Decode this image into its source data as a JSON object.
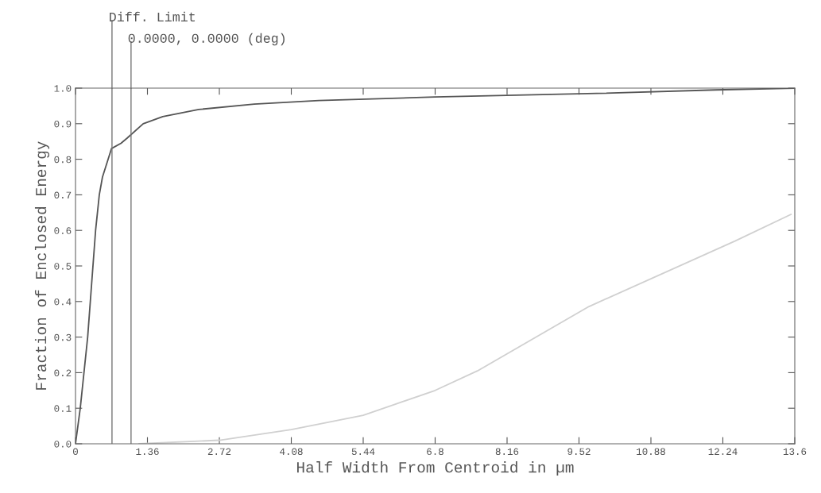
{
  "chart_data": {
    "type": "line",
    "xlabel": "Half Width From Centroid in µm",
    "ylabel": "Fraction of Enclosed Energy",
    "xlim": [
      0,
      13.6
    ],
    "ylim": [
      0,
      1.0
    ],
    "xticks": [
      0,
      1.36,
      2.72,
      4.08,
      5.44,
      6.8,
      8.16,
      9.52,
      10.88,
      12.24,
      13.6
    ],
    "yticks": [
      {
        "value": 0,
        "label": "0.0"
      },
      0.1,
      0.2,
      0.3,
      0.4,
      0.5,
      0.6,
      0.7,
      0.8,
      0.9,
      {
        "value": 1,
        "label": "1.0"
      }
    ],
    "series": [
      {
        "color": "#555555",
        "x": [
          0,
          0.09,
          0.23,
          0.33,
          0.38,
          0.45,
          0.51,
          0.68,
          0.86,
          0.98,
          1.28,
          1.65,
          2.33,
          3.38,
          4.6,
          6.8,
          9.85,
          12.1,
          13.6
        ],
        "values": [
          0,
          0.1,
          0.3,
          0.5,
          0.6,
          0.7,
          0.75,
          0.83,
          0.845,
          0.86,
          0.9,
          0.92,
          0.94,
          0.955,
          0.965,
          0.975,
          0.985,
          0.995,
          1.0
        ]
      },
      {
        "color": "#d0d0d0",
        "x": [
          1.2,
          2.72,
          4.08,
          5.44,
          6.8,
          7.6,
          9.71,
          12.47,
          13.53
        ],
        "values": [
          0,
          0.01,
          0.04,
          0.08,
          0.15,
          0.205,
          0.386,
          0.57,
          0.645
        ]
      }
    ],
    "ref_lines": [
      {
        "axis": "x",
        "value": 0.69,
        "label": "Diff. Limit",
        "color": "#777777"
      },
      {
        "axis": "x",
        "value": 1.05,
        "label": "0.0000, 0.0000 (deg)",
        "color": "#777777"
      }
    ],
    "grid": false,
    "legend": false
  }
}
